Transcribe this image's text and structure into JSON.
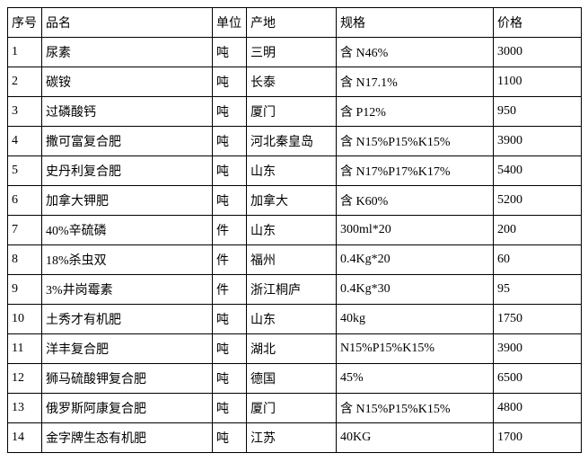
{
  "table": {
    "columns": [
      "序号",
      "品名",
      "单位",
      "产地",
      "规格",
      "价格"
    ],
    "rows": [
      [
        "1",
        "尿素",
        "吨",
        "三明",
        "含 N46%",
        "3000"
      ],
      [
        "2",
        "碳铵",
        "吨",
        "长泰",
        "含 N17.1%",
        "1100"
      ],
      [
        "3",
        "过磷酸钙",
        "吨",
        "厦门",
        "含 P12%",
        "950"
      ],
      [
        "4",
        "撒可富复合肥",
        "吨",
        "河北秦皇岛",
        "含 N15%P15%K15%",
        "3900"
      ],
      [
        "5",
        "史丹利复合肥",
        "吨",
        "山东",
        "含 N17%P17%K17%",
        "5400"
      ],
      [
        "6",
        "加拿大钾肥",
        "吨",
        "加拿大",
        "含 K60%",
        "5200"
      ],
      [
        "7",
        "40%辛硫磷",
        "件",
        "山东",
        "300ml*20",
        "200"
      ],
      [
        "8",
        "18%杀虫双",
        "件",
        "福州",
        "0.4Kg*20",
        "60"
      ],
      [
        "9",
        "3%井岗霉素",
        "件",
        "浙江桐庐",
        "0.4Kg*30",
        "95"
      ],
      [
        "10",
        "土秀才有机肥",
        "吨",
        "山东",
        "40kg",
        "1750"
      ],
      [
        "11",
        "洋丰复合肥",
        "吨",
        "湖北",
        "N15%P15%K15%",
        "3900"
      ],
      [
        "12",
        "狮马硫酸钾复合肥",
        "吨",
        "德国",
        "45%",
        "6500"
      ],
      [
        "13",
        "俄罗斯阿康复合肥",
        "吨",
        "厦门",
        "含 N15%P15%K15%",
        "4800"
      ],
      [
        "14",
        "金字牌生态有机肥",
        "吨",
        "江苏",
        "40KG",
        "1700"
      ]
    ],
    "border_color": "#000000",
    "background_color": "#ffffff",
    "text_color": "#000000",
    "font_size": 14
  }
}
